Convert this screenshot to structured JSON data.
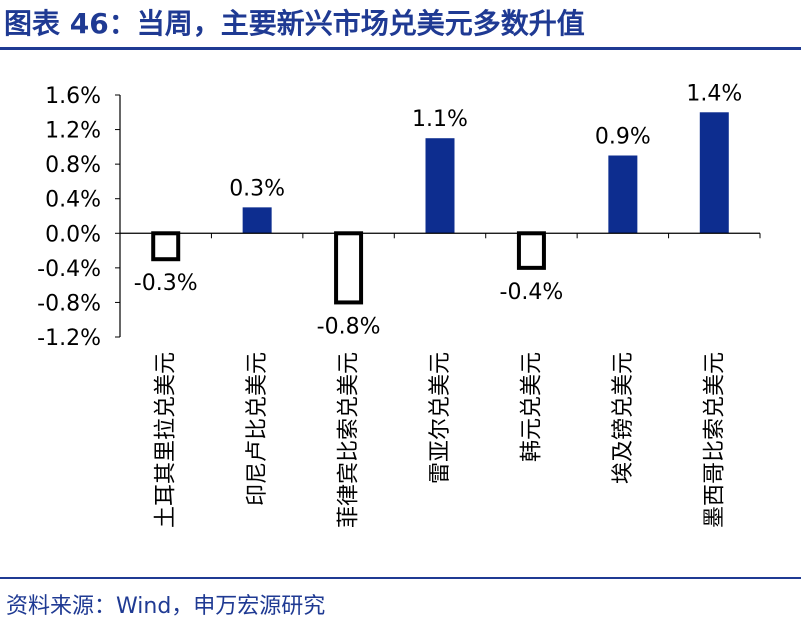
{
  "header": {
    "title": "图表 46：当周，主要新兴市场兑美元多数升值"
  },
  "footer": {
    "source": "资料来源：Wind，申万宏源研究"
  },
  "colors": {
    "accent": "#1f3a93",
    "positive_bar": "#0d2d8f",
    "negative_outline": "#000000"
  },
  "chart_data": {
    "type": "bar",
    "title": "图表 46：当周，主要新兴市场兑美元多数升值",
    "xlabel": "",
    "ylabel": "",
    "categories": [
      "土耳其里拉兑美元",
      "印尼卢比兑美元",
      "菲律宾比索兑美元",
      "雷亚尔兑美元",
      "韩元兑美元",
      "埃及镑兑美元",
      "墨西哥比索兑美元"
    ],
    "values": [
      -0.3,
      0.3,
      -0.8,
      1.1,
      -0.4,
      0.9,
      1.4
    ],
    "data_labels": [
      "-0.3%",
      "0.3%",
      "-0.8%",
      "1.1%",
      "-0.4%",
      "0.9%",
      "1.4%"
    ],
    "ylim": [
      -1.2,
      1.6
    ],
    "yticks": [
      -1.2,
      -0.8,
      -0.4,
      0.0,
      0.4,
      0.8,
      1.2,
      1.6
    ],
    "ytick_labels": [
      "-1.2%",
      "-0.8%",
      "-0.4%",
      "0.0%",
      "0.4%",
      "0.8%",
      "1.2%",
      "1.6%"
    ],
    "grid": false,
    "legend": "none"
  }
}
